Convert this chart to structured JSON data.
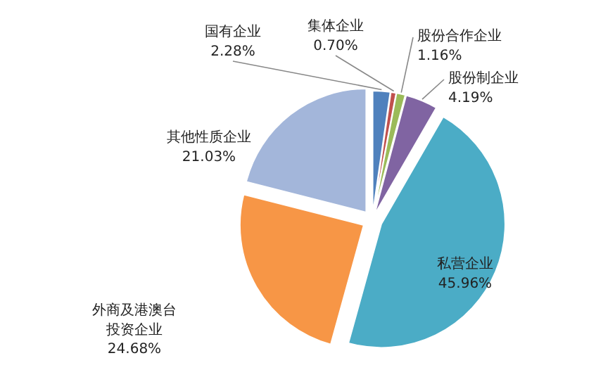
{
  "chart_data": {
    "type": "pie",
    "categories": [
      "国有企业",
      "集体企业",
      "股份合作企业",
      "股份制企业",
      "私营企业",
      "外商及港澳台投资企业",
      "其他性质企业"
    ],
    "values": [
      2.28,
      0.7,
      1.16,
      4.19,
      45.96,
      24.68,
      21.03
    ],
    "colors": [
      "#4f81bd",
      "#c0504d",
      "#9bbb59",
      "#8064a2",
      "#4bacc6",
      "#f79646",
      "#a3b6da"
    ],
    "value_labels": [
      "2.28%",
      "0.70%",
      "1.16%",
      "4.19%",
      "45.96%",
      "24.68%",
      "21.03%"
    ]
  }
}
